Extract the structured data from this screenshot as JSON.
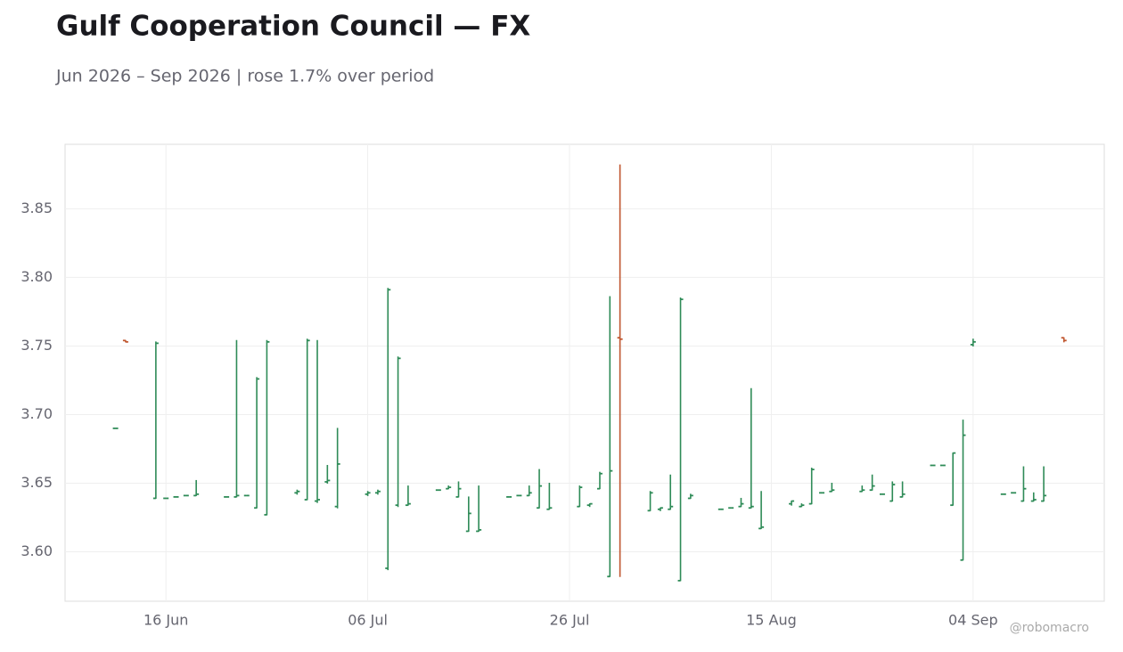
{
  "chart_data": {
    "type": "ohlc",
    "title": "Gulf Cooperation Council — FX",
    "subtitle": "Jun 2026 – Sep 2026 | rose 1.7% over period",
    "watermark": "@robomacro",
    "up_color": "#2e8b57",
    "down_color": "#c0562f",
    "grid": true,
    "x": [
      "2026-06-11",
      "2026-06-12",
      "2026-06-15",
      "2026-06-16",
      "2026-06-17",
      "2026-06-18",
      "2026-06-19",
      "2026-06-22",
      "2026-06-23",
      "2026-06-24",
      "2026-06-25",
      "2026-06-26",
      "2026-06-29",
      "2026-06-30",
      "2026-07-01",
      "2026-07-02",
      "2026-07-03",
      "2026-07-06",
      "2026-07-07",
      "2026-07-08",
      "2026-07-09",
      "2026-07-10",
      "2026-07-13",
      "2026-07-14",
      "2026-07-15",
      "2026-07-16",
      "2026-07-17",
      "2026-07-20",
      "2026-07-21",
      "2026-07-22",
      "2026-07-23",
      "2026-07-24",
      "2026-07-27",
      "2026-07-28",
      "2026-07-29",
      "2026-07-30",
      "2026-07-31",
      "2026-08-03",
      "2026-08-04",
      "2026-08-05",
      "2026-08-06",
      "2026-08-07",
      "2026-08-10",
      "2026-08-11",
      "2026-08-12",
      "2026-08-13",
      "2026-08-14",
      "2026-08-17",
      "2026-08-18",
      "2026-08-19",
      "2026-08-20",
      "2026-08-21",
      "2026-08-24",
      "2026-08-25",
      "2026-08-26",
      "2026-08-27",
      "2026-08-28",
      "2026-08-31",
      "2026-09-01",
      "2026-09-02",
      "2026-09-03",
      "2026-09-04",
      "2026-09-07",
      "2026-09-08",
      "2026-09-09",
      "2026-09-10",
      "2026-09-11",
      "2026-09-13"
    ],
    "open": [
      3.69,
      3.754,
      3.639,
      3.639,
      3.64,
      3.641,
      3.641,
      3.64,
      3.64,
      3.641,
      3.632,
      3.627,
      3.643,
      3.638,
      3.637,
      3.651,
      3.633,
      3.642,
      3.643,
      3.588,
      3.634,
      3.634,
      3.645,
      3.646,
      3.64,
      3.615,
      3.615,
      3.64,
      3.641,
      3.641,
      3.632,
      3.631,
      3.633,
      3.634,
      3.646,
      3.582,
      3.756,
      3.63,
      3.631,
      3.631,
      3.579,
      3.639,
      3.631,
      3.632,
      3.633,
      3.632,
      3.617,
      3.635,
      3.633,
      3.635,
      3.643,
      3.644,
      3.644,
      3.645,
      3.642,
      3.637,
      3.64,
      3.663,
      3.663,
      3.634,
      3.594,
      3.751,
      3.642,
      3.643,
      3.637,
      3.637,
      3.637,
      3.756
    ],
    "high": [
      3.69,
      3.754,
      3.753,
      3.639,
      3.64,
      3.641,
      3.652,
      3.64,
      3.754,
      3.641,
      3.727,
      3.754,
      3.645,
      3.755,
      3.754,
      3.663,
      3.69,
      3.644,
      3.645,
      3.792,
      3.742,
      3.648,
      3.645,
      3.648,
      3.651,
      3.64,
      3.648,
      3.64,
      3.641,
      3.648,
      3.66,
      3.65,
      3.648,
      3.635,
      3.658,
      3.786,
      3.882,
      3.644,
      3.632,
      3.656,
      3.785,
      3.642,
      3.631,
      3.632,
      3.639,
      3.719,
      3.644,
      3.637,
      3.635,
      3.661,
      3.643,
      3.65,
      3.648,
      3.656,
      3.642,
      3.651,
      3.651,
      3.663,
      3.663,
      3.672,
      3.696,
      3.755,
      3.642,
      3.643,
      3.662,
      3.643,
      3.662,
      3.756
    ],
    "low": [
      3.69,
      3.753,
      3.639,
      3.639,
      3.64,
      3.641,
      3.641,
      3.64,
      3.64,
      3.641,
      3.632,
      3.627,
      3.642,
      3.638,
      3.636,
      3.65,
      3.632,
      3.641,
      3.642,
      3.587,
      3.633,
      3.634,
      3.645,
      3.646,
      3.64,
      3.615,
      3.615,
      3.64,
      3.641,
      3.641,
      3.632,
      3.631,
      3.633,
      3.633,
      3.646,
      3.582,
      3.582,
      3.63,
      3.63,
      3.631,
      3.579,
      3.639,
      3.631,
      3.632,
      3.633,
      3.632,
      3.617,
      3.634,
      3.633,
      3.635,
      3.643,
      3.644,
      3.644,
      3.645,
      3.642,
      3.637,
      3.64,
      3.663,
      3.663,
      3.634,
      3.594,
      3.75,
      3.642,
      3.643,
      3.637,
      3.637,
      3.637,
      3.753
    ],
    "close": [
      3.69,
      3.753,
      3.752,
      3.639,
      3.64,
      3.641,
      3.642,
      3.64,
      3.641,
      3.641,
      3.726,
      3.753,
      3.644,
      3.754,
      3.638,
      3.652,
      3.664,
      3.643,
      3.644,
      3.791,
      3.741,
      3.635,
      3.645,
      3.647,
      3.646,
      3.628,
      3.616,
      3.64,
      3.641,
      3.643,
      3.648,
      3.632,
      3.647,
      3.635,
      3.657,
      3.659,
      3.755,
      3.643,
      3.632,
      3.633,
      3.784,
      3.641,
      3.631,
      3.632,
      3.635,
      3.633,
      3.618,
      3.637,
      3.634,
      3.66,
      3.643,
      3.645,
      3.645,
      3.648,
      3.642,
      3.649,
      3.642,
      3.663,
      3.663,
      3.672,
      3.685,
      3.753,
      3.642,
      3.643,
      3.646,
      3.638,
      3.641,
      3.754
    ],
    "xlim": [
      "2026-06-06",
      "2026-09-17"
    ],
    "xticks": [
      {
        "value": "2026-06-16",
        "label": "16 Jun"
      },
      {
        "value": "2026-07-06",
        "label": "06 Jul"
      },
      {
        "value": "2026-07-26",
        "label": "26 Jul"
      },
      {
        "value": "2026-08-15",
        "label": "15 Aug"
      },
      {
        "value": "2026-09-04",
        "label": "04 Sep"
      }
    ],
    "ylim": [
      3.564,
      3.897
    ],
    "yticks": [
      {
        "value": 3.6,
        "label": "3.60"
      },
      3.65,
      {
        "value": 3.7,
        "label": "3.70"
      },
      3.75,
      {
        "value": 3.8,
        "label": "3.80"
      },
      3.85
    ]
  }
}
